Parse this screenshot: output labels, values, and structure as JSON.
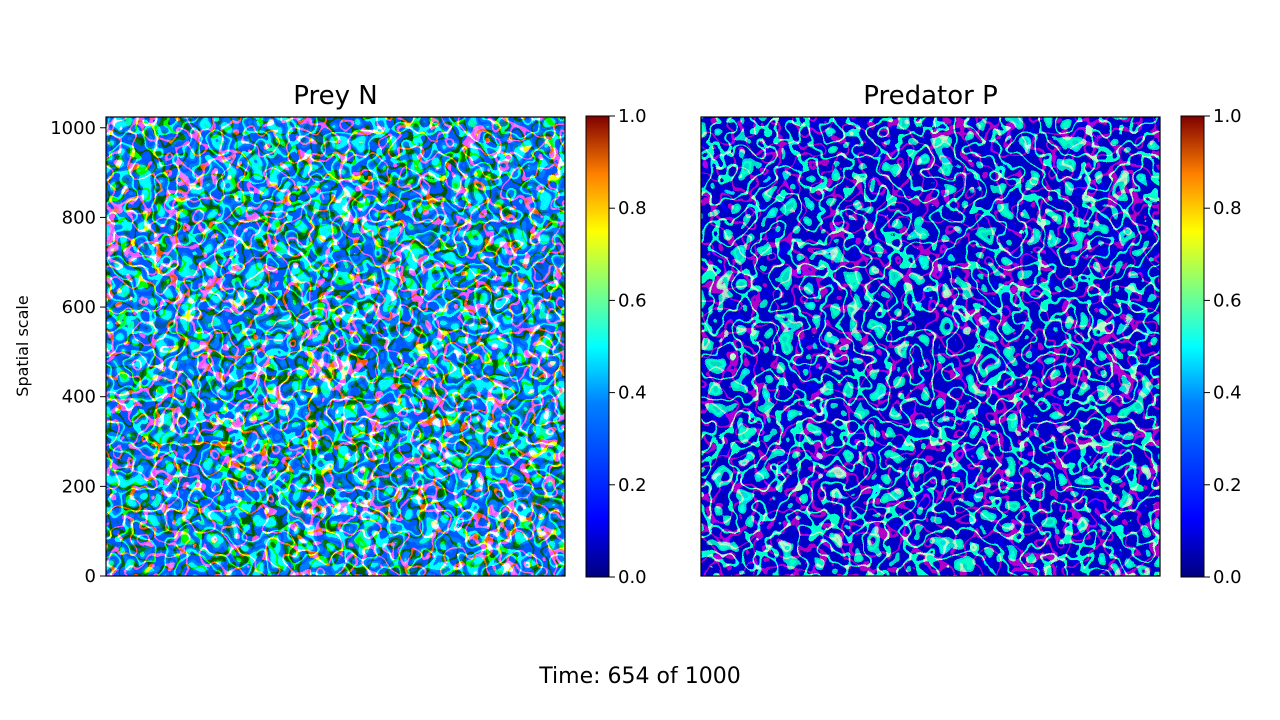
{
  "figure": {
    "time_label": "Time: 654 of 1000"
  },
  "chart_data": [
    {
      "type": "heatmap",
      "title": "Prey N",
      "xlabel": "",
      "ylabel": "Spatial scale",
      "xticks": [],
      "yticks": [
        0,
        200,
        400,
        600,
        800,
        1000
      ],
      "ylim": [
        0,
        1024
      ],
      "colormap": "jet",
      "colorbar": {
        "vmin": 0.0,
        "vmax": 1.0,
        "ticks": [
          "0.0",
          "0.2",
          "0.4",
          "0.6",
          "0.8",
          "1.0"
        ]
      },
      "grid_size": [
        1024,
        1024
      ],
      "pattern": "labyrinthine spiral bands, value ~0.5-0.9 on bands, ~0.1-0.2 background",
      "background_level": 0.15
    },
    {
      "type": "heatmap",
      "title": "Predator P",
      "xlabel": "",
      "ylabel": "",
      "xticks": [],
      "yticks": [],
      "ylim": [
        0,
        1024
      ],
      "colormap": "jet",
      "colorbar": {
        "vmin": 0.0,
        "vmax": 1.0,
        "ticks": [
          "0.0",
          "0.2",
          "0.4",
          "0.6",
          "0.8",
          "1.0"
        ]
      },
      "grid_size": [
        1024,
        1024
      ],
      "pattern": "labyrinthine spiral bands, value ~0.35-0.5 on bands, ~0.05 background",
      "background_level": 0.05
    }
  ],
  "colors": {
    "jet_stops": [
      "#00007f",
      "#0000ff",
      "#007fff",
      "#00ffff",
      "#7fff7f",
      "#ffff00",
      "#ff7f00",
      "#ff0000",
      "#7f0000"
    ]
  }
}
